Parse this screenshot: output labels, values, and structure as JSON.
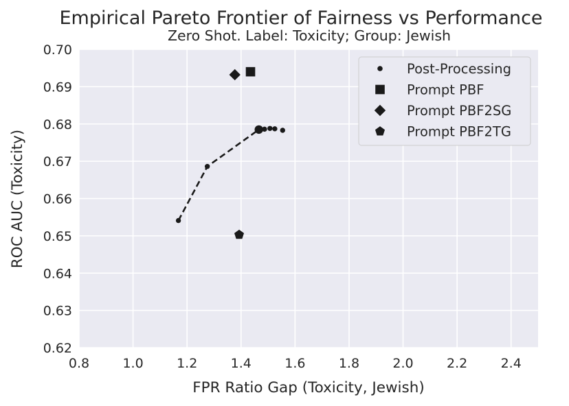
{
  "chart_data": {
    "type": "scatter",
    "title": "Empirical Pareto Frontier of Fairness vs Performance",
    "subtitle": "Zero Shot. Label: Toxicity; Group: Jewish",
    "xlabel": "FPR Ratio Gap (Toxicity, Jewish)",
    "ylabel": "ROC AUC (Toxicity)",
    "xlim": [
      0.8,
      2.5
    ],
    "ylim": [
      0.62,
      0.7
    ],
    "xticks": [
      "0.8",
      "1.0",
      "1.2",
      "1.4",
      "1.6",
      "1.8",
      "2.0",
      "2.2",
      "2.4"
    ],
    "xtick_values": [
      0.8,
      1.0,
      1.2,
      1.4,
      1.6,
      1.8,
      2.0,
      2.2,
      2.4
    ],
    "yticks": [
      "0.62",
      "0.63",
      "0.64",
      "0.65",
      "0.66",
      "0.67",
      "0.68",
      "0.69",
      "0.70"
    ],
    "ytick_values": [
      0.62,
      0.63,
      0.64,
      0.65,
      0.66,
      0.67,
      0.68,
      0.69,
      0.7
    ],
    "grid": true,
    "legend_position": "top-right",
    "background_color": "#eaeaf2",
    "marker_color": "#1a1a1a",
    "series": [
      {
        "name": "Post-Processing",
        "marker": "circle",
        "points": [
          {
            "x": 1.168,
            "y": 0.6541,
            "size": "small"
          },
          {
            "x": 1.275,
            "y": 0.6686,
            "size": "small"
          },
          {
            "x": 1.466,
            "y": 0.6785,
            "size": "large"
          },
          {
            "x": 1.487,
            "y": 0.6786,
            "size": "small"
          },
          {
            "x": 1.507,
            "y": 0.6788,
            "size": "small"
          },
          {
            "x": 1.525,
            "y": 0.6787,
            "size": "small"
          },
          {
            "x": 1.554,
            "y": 0.6783,
            "size": "small"
          }
        ],
        "frontier": [
          {
            "x": 1.168,
            "y": 0.6541
          },
          {
            "x": 1.275,
            "y": 0.6686
          },
          {
            "x": 1.466,
            "y": 0.6785
          }
        ]
      },
      {
        "name": "Prompt PBF",
        "marker": "square",
        "points": [
          {
            "x": 1.435,
            "y": 0.694
          }
        ]
      },
      {
        "name": "Prompt PBF2SG",
        "marker": "diamond",
        "points": [
          {
            "x": 1.377,
            "y": 0.6932
          }
        ]
      },
      {
        "name": "Prompt PBF2TG",
        "marker": "pentagon",
        "points": [
          {
            "x": 1.393,
            "y": 0.6503
          }
        ]
      }
    ]
  }
}
